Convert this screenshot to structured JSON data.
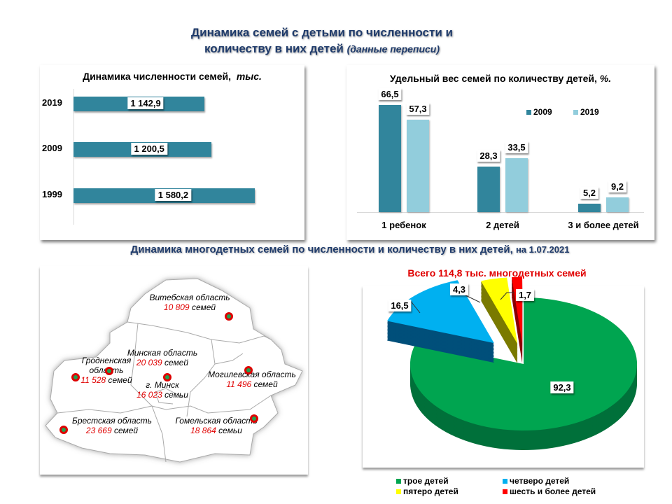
{
  "header": {
    "title_line1": "Динамика семей с детьми по численности и",
    "title_line2": "количеству  в них детей",
    "title_note": "(данные переписи)"
  },
  "subtitle": {
    "text": "Динамика многодетных семей по численности и количеству в них детей,",
    "date": "на 1.07.2021"
  },
  "colors": {
    "teal": "#31859c",
    "light": "#92cddc",
    "green": "#00a550",
    "blue": "#00b0f0",
    "yellow": "#ffff00",
    "red": "#ff0000"
  },
  "chart_data": [
    {
      "type": "bar",
      "orientation": "horizontal",
      "title": "Динамика численности семей,",
      "title_unit": "тыс.",
      "categories": [
        "2019",
        "2009",
        "1999"
      ],
      "values": [
        1142.9,
        1200.5,
        1580.2
      ],
      "labels": [
        "1 142,9",
        "1 200,5",
        "1 580,2"
      ]
    },
    {
      "type": "bar",
      "title": "Удельный вес семей  по количеству детей,",
      "title_unit": "%.",
      "categories": [
        "1 ребенок",
        "2 детей",
        "3 и более детей"
      ],
      "series": [
        {
          "name": "2009",
          "values": [
            66.5,
            28.3,
            5.2
          ],
          "labels": [
            "66,5",
            "28,3",
            "5,2"
          ]
        },
        {
          "name": "2019",
          "values": [
            57.3,
            33.5,
            9.2
          ],
          "labels": [
            "57,3",
            "33,5",
            "9,2"
          ]
        }
      ],
      "legend": "top-right"
    },
    {
      "type": "pie",
      "title": "Всего 114,8  тыс.  многодетных семей",
      "categories": [
        "трое детей",
        "четверо детей",
        "пятеро детей",
        "шесть и более детей"
      ],
      "values": [
        92.3,
        16.5,
        4.3,
        1.7
      ],
      "labels": [
        "92,3",
        "16,5",
        "4,3",
        "1,7"
      ],
      "legend": "bottom"
    }
  ],
  "map": {
    "regions": [
      {
        "name": "Витебская область",
        "count": "10 809",
        "unit": "семей"
      },
      {
        "name": "Минская область",
        "count": "20 039",
        "unit": "семей"
      },
      {
        "name": "Гродненская область",
        "name2": "область",
        "name1": "Гродненская",
        "count": "11 528",
        "unit": "семей"
      },
      {
        "name": "г. Минск",
        "count": "16 023",
        "unit": "семьи"
      },
      {
        "name": "Могилевская область",
        "count": "11 496",
        "unit": "семей"
      },
      {
        "name": "Брестская область",
        "count": "23 669",
        "unit": "семей"
      },
      {
        "name": "Гомельская область",
        "count": "18 864",
        "unit": "семьи"
      }
    ]
  }
}
